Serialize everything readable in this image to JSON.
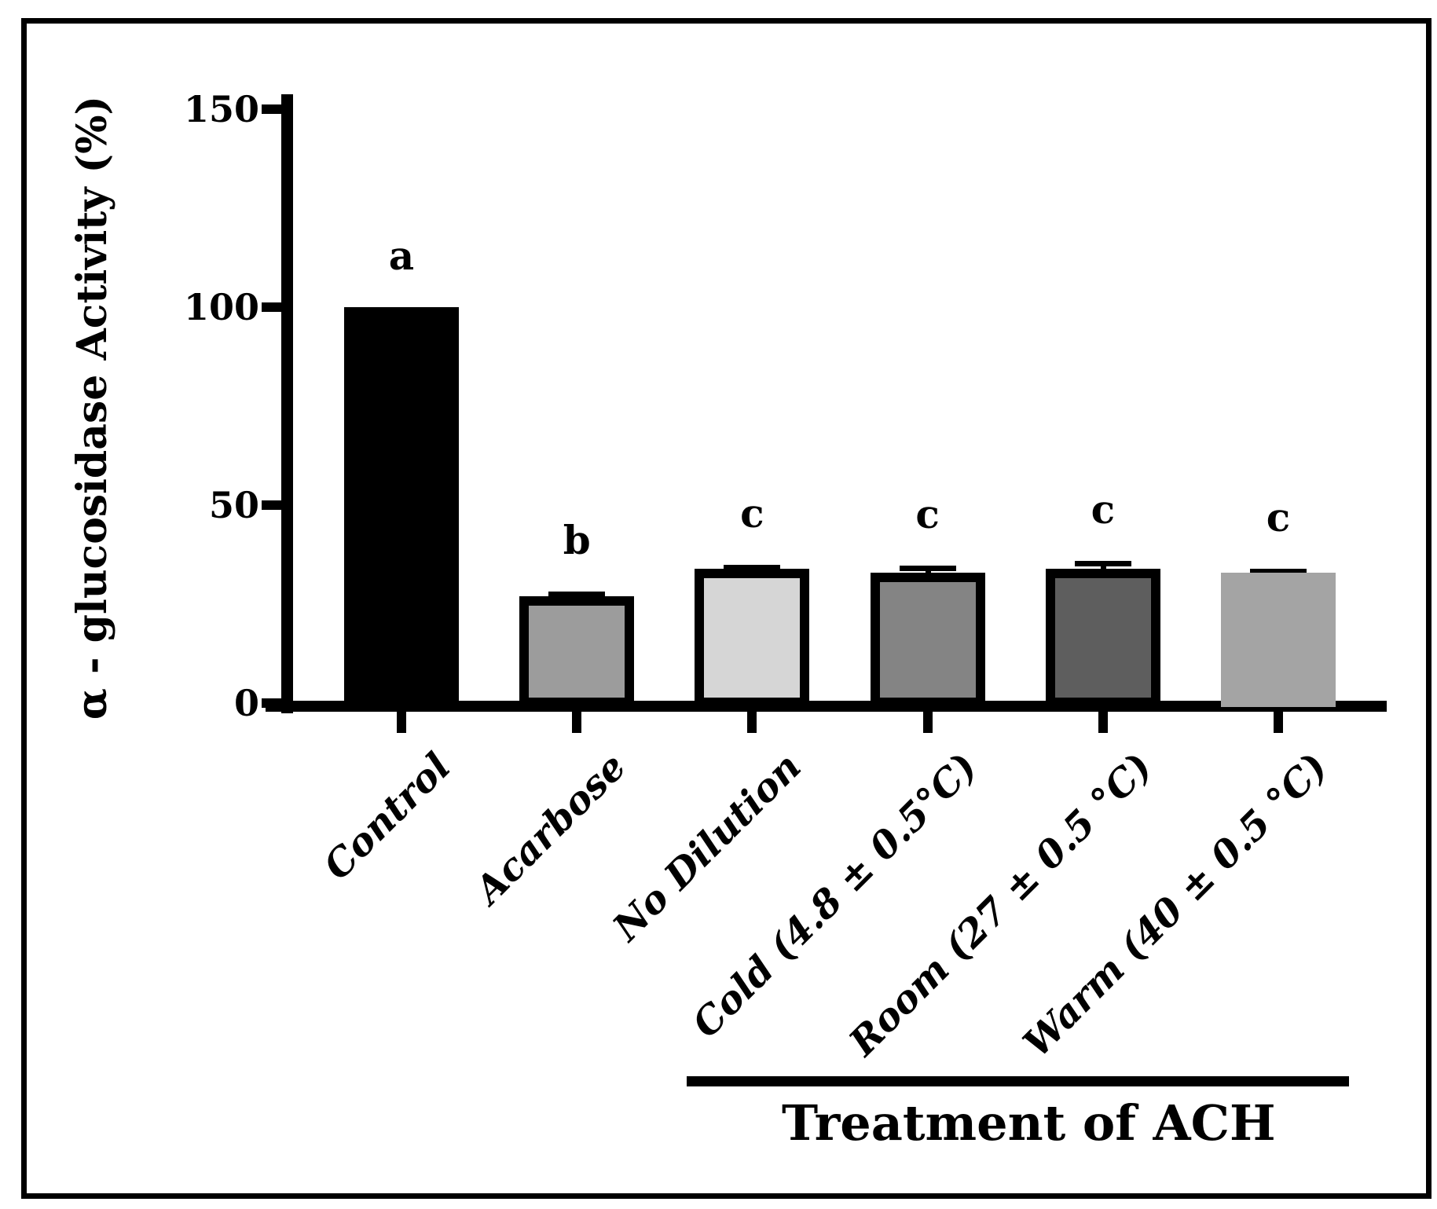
{
  "figure": {
    "background_color": "#ffffff",
    "frame_color": "#000000",
    "axis_color": "#000000",
    "ylabel": "α - glucosidase Activity (%)",
    "group_label": "Treatment of ACH"
  },
  "chart_data": {
    "type": "bar",
    "title": "",
    "xlabel": "",
    "ylabel": "α - glucosidase Activity (%)",
    "ylim": [
      0,
      150
    ],
    "yticks": [
      0,
      50,
      100,
      150
    ],
    "grid": false,
    "legend": null,
    "categories": [
      "Control",
      "Acarbose",
      "No Dilution",
      "Cold (4.8 ± 0.5°C)",
      "Room (27 ± 0.5 °C)",
      "Warm (40 ± 0.5 °C)"
    ],
    "series": [
      {
        "name": "α-glucosidase activity (%)",
        "values": [
          100,
          27,
          34,
          33,
          34,
          33
        ],
        "errors": [
          0,
          1.2,
          1,
          1.7,
          2,
          1
        ]
      }
    ],
    "significance_letters": [
      "a",
      "b",
      "c",
      "c",
      "c",
      "c"
    ],
    "bar_colors": [
      "#000000",
      "#9c9c9c",
      "#d6d6d6",
      "#848484",
      "#5e5e5e",
      "#a4a4a4"
    ],
    "bar_outlined": [
      true,
      true,
      true,
      true,
      true,
      false
    ],
    "bar_outline_color": "#000000",
    "group_bracket": {
      "label": "Treatment of ACH",
      "covers_categories": [
        "No Dilution",
        "Cold (4.8 ± 0.5°C)",
        "Room (27 ± 0.5 °C)",
        "Warm (40 ± 0.5 °C)"
      ]
    }
  }
}
